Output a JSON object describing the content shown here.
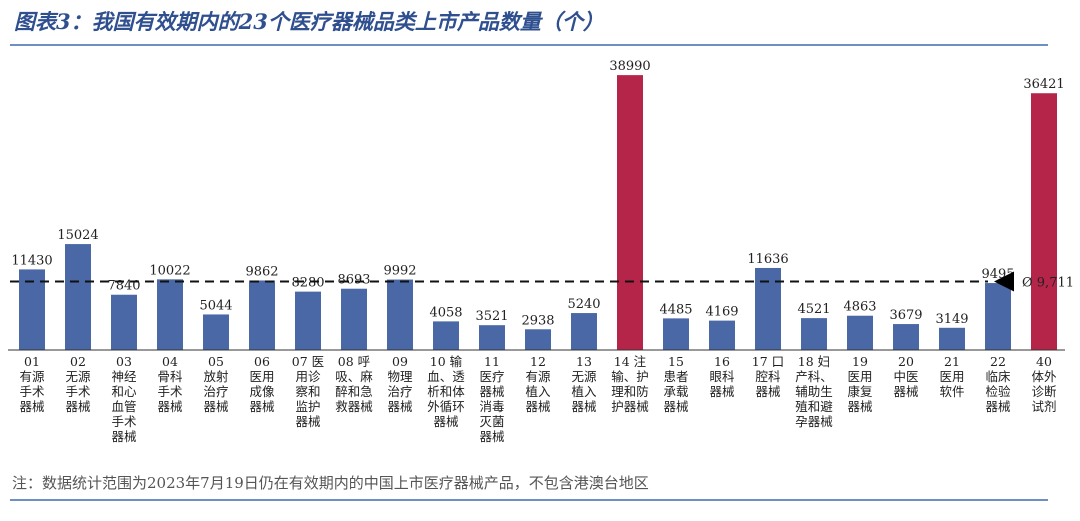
{
  "title": "图表3：我国有效期内的23个医疗器械品类上市产品数量（个）",
  "note": "注：数据统计范围为2023年7月19日仍在有效期内的中国上市医疗器械产品，不包含港澳台地区",
  "chart_data": {
    "type": "bar",
    "title": "图表3：我国有效期内的23个医疗器械品类上市产品数量（个）",
    "categories": [
      [
        "01",
        "有源",
        "手术",
        "器械"
      ],
      [
        "02",
        "无源",
        "手术",
        "器械"
      ],
      [
        "03",
        "神经",
        "和心",
        "血管",
        "手术",
        "器械"
      ],
      [
        "04",
        "骨科",
        "手术",
        "器械"
      ],
      [
        "05",
        "放射",
        "治疗",
        "器械"
      ],
      [
        "06",
        "医用",
        "成像",
        "器械"
      ],
      [
        "07 医",
        "用诊",
        "察和",
        "监护",
        "器械"
      ],
      [
        "08 呼",
        "吸、麻",
        "醉和急",
        "救器械"
      ],
      [
        "09",
        "物理",
        "治疗",
        "器械"
      ],
      [
        "10 输",
        "血、透",
        "析和体",
        "外循环",
        "器械"
      ],
      [
        "11",
        "医疗",
        "器械",
        "消毒",
        "灭菌",
        "器械"
      ],
      [
        "12",
        "有源",
        "植入",
        "器械"
      ],
      [
        "13",
        "无源",
        "植入",
        "器械"
      ],
      [
        "14 注",
        "输、护",
        "理和防",
        "护器械"
      ],
      [
        "15",
        "患者",
        "承载",
        "器械"
      ],
      [
        "16",
        "眼科",
        "器械"
      ],
      [
        "17 口",
        "腔科",
        "器械"
      ],
      [
        "18 妇",
        "产科、",
        "辅助生",
        "殖和避",
        "孕器械"
      ],
      [
        "19",
        "医用",
        "康复",
        "器械"
      ],
      [
        "20",
        "中医",
        "器械"
      ],
      [
        "21",
        "医用",
        "软件"
      ],
      [
        "22",
        "临床",
        "检验",
        "器械"
      ],
      [
        "40",
        "体外",
        "诊断",
        "试剂"
      ]
    ],
    "values": [
      11430,
      15024,
      7840,
      10022,
      5044,
      9862,
      8280,
      8693,
      9992,
      4058,
      3521,
      2938,
      5240,
      38990,
      4485,
      4169,
      11636,
      4521,
      4863,
      3679,
      3149,
      9495,
      36421
    ],
    "value_labels": [
      "11430",
      "15024",
      "7840",
      "10022",
      "5044",
      "9862",
      "8280",
      "8693",
      "9992",
      "4058",
      "3521",
      "2938",
      "5240",
      "38990",
      "4485",
      "4169",
      "11636",
      "4521",
      "4863",
      "3679",
      "3149",
      "9495",
      "36421"
    ],
    "highlight_indices": [
      13,
      22
    ],
    "average": {
      "value": 9711,
      "label": "Ø 9,711"
    },
    "colors": {
      "bar": "#4a67a6",
      "highlight": "#b5254a",
      "average_line": "#111111"
    },
    "ylim": [
      0,
      40000
    ],
    "grid": false,
    "legend": "none"
  }
}
